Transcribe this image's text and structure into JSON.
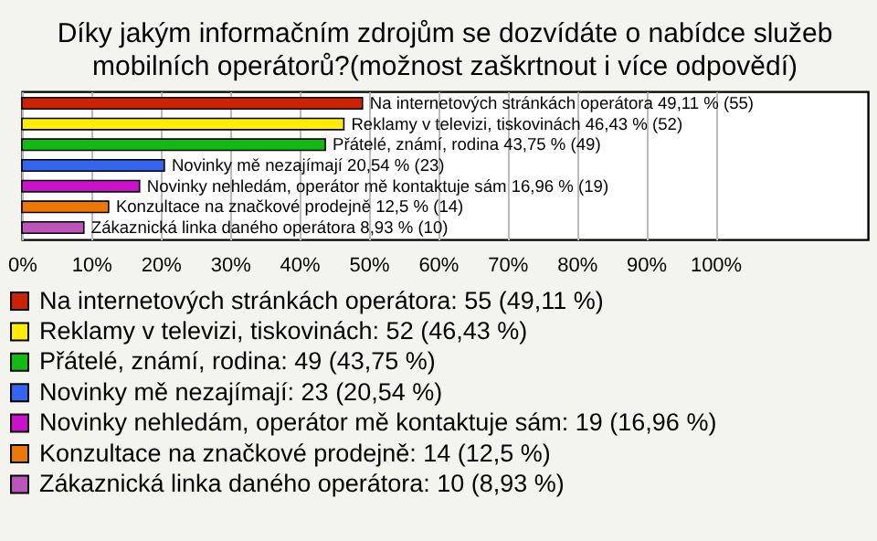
{
  "chart_data": {
    "type": "bar",
    "orientation": "horizontal",
    "title": "Díky jakým informačním zdrojům se dozvídáte o nabídce služeb mobilních operátorů?(možnost zaškrtnout i více odpovědí)",
    "categories": [
      null,
      null,
      null,
      null,
      null,
      null,
      null
    ],
    "series": [
      {
        "name": "Na internetových stránkách operátora: 55 (49,11 %)",
        "color": "#cc2200",
        "values": [
          49.11,
          null,
          null,
          null,
          null,
          null,
          null
        ],
        "value_labels": [
          "Na internetových stránkách operátora 49,11 % (55)",
          null,
          null,
          null,
          null,
          null,
          null
        ]
      },
      {
        "name": "Reklamy v televizi, tiskovinách: 52 (46,43 %)",
        "color": "#ffee00",
        "values": [
          null,
          46.43,
          null,
          null,
          null,
          null,
          null
        ],
        "value_labels": [
          null,
          "Reklamy v televizi, tiskovinách 46,43 % (52)",
          null,
          null,
          null,
          null,
          null
        ]
      },
      {
        "name": "Přátelé, známí, rodina: 49 (43,75 %)",
        "color": "#11bb11",
        "values": [
          null,
          null,
          43.75,
          null,
          null,
          null,
          null
        ],
        "value_labels": [
          null,
          null,
          "Přátelé, známí, rodina 43,75 % (49)",
          null,
          null,
          null,
          null
        ]
      },
      {
        "name": "Novinky mě nezajímají: 23 (20,54 %)",
        "color": "#3366ee",
        "values": [
          null,
          null,
          null,
          20.54,
          null,
          null,
          null
        ],
        "value_labels": [
          null,
          null,
          null,
          "Novinky mě nezajímají 20,54 % (23)",
          null,
          null,
          null
        ]
      },
      {
        "name": "Novinky nehledám, operátor mě kontaktuje sám: 19 (16,96 %)",
        "color": "#cc11cc",
        "values": [
          null,
          null,
          null,
          null,
          16.96,
          null,
          null
        ],
        "value_labels": [
          null,
          null,
          null,
          null,
          "Novinky nehledám, operátor mě kontaktuje sám 16,96 % (19)",
          null,
          null
        ]
      },
      {
        "name": "Konzultace na značkové prodejně: 14 (12,5 %)",
        "color": "#ee7700",
        "values": [
          null,
          null,
          null,
          null,
          null,
          12.5,
          null
        ],
        "value_labels": [
          null,
          null,
          null,
          null,
          null,
          "Konzultace na značkové prodejně 12,5 % (14)",
          null
        ]
      },
      {
        "name": "Zákaznická linka daného operátora: 10 (8,93 %)",
        "color": "#bb55bb",
        "values": [
          null,
          null,
          null,
          null,
          null,
          null,
          8.93
        ],
        "value_labels": [
          null,
          null,
          null,
          null,
          null,
          null,
          "Zákaznická linka daného operátora 8,93 % (10)"
        ]
      }
    ],
    "xlim": [
      0,
      122
    ],
    "xticks": [
      {
        "value": 0,
        "label": "0%"
      },
      {
        "value": 10,
        "label": "10%"
      },
      {
        "value": 20,
        "label": "20%"
      },
      {
        "value": 30,
        "label": "30%"
      },
      {
        "value": 40,
        "label": "40%"
      },
      {
        "value": 50,
        "label": "50%"
      },
      {
        "value": 60,
        "label": "60%"
      },
      {
        "value": 70,
        "label": "70%"
      },
      {
        "value": 80,
        "label": "80%"
      },
      {
        "value": 90,
        "label": "90%"
      },
      {
        "value": 100,
        "label": "100%"
      }
    ],
    "grid": "x",
    "legend": "bottom",
    "tick_labels": "x"
  }
}
